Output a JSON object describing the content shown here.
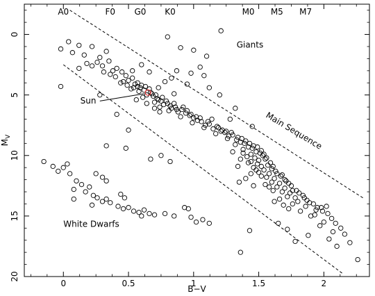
{
  "chart_data": {
    "type": "scatter",
    "title": "",
    "xlabel": "B−V",
    "ylabel": "M",
    "ylabel_sub": "V",
    "xlim": [
      -0.3,
      2.35
    ],
    "ylim": [
      20,
      -2.5
    ],
    "y_inverted": true,
    "grid": false,
    "x_ticks": [
      0,
      0.5,
      1,
      1.5,
      2
    ],
    "x_tick_labels": [
      "0",
      "0.5",
      "1",
      "1.5",
      "2"
    ],
    "y_ticks": [
      0,
      5,
      10,
      15,
      20
    ],
    "y_tick_labels": [
      "0",
      "5",
      "10",
      "15",
      "20"
    ],
    "spectral_types": [
      {
        "label": "A0",
        "x": 0.0
      },
      {
        "label": "F0",
        "x": 0.36
      },
      {
        "label": "G0",
        "x": 0.59
      },
      {
        "label": "K0",
        "x": 0.82
      },
      {
        "label": "M0",
        "x": 1.42
      },
      {
        "label": "M5",
        "x": 1.64
      },
      {
        "label": "M7",
        "x": 1.86
      }
    ],
    "annotations": [
      {
        "text": "Giants",
        "x": 1.33,
        "y": 1.1
      },
      {
        "text": "Main Sequence",
        "x": 1.55,
        "y": 6.8,
        "angle": 31
      },
      {
        "text": "Sun",
        "x": 0.13,
        "y": 5.7
      },
      {
        "text": "White Dwarfs",
        "x": 0.0,
        "y": 15.9
      }
    ],
    "sun": {
      "x": 0.65,
      "y": 4.8
    },
    "sun_pointer": {
      "x1": 0.28,
      "y1": 5.5,
      "x2": 0.62,
      "y2": 4.9
    },
    "dashed_lines": [
      {
        "x1": 0.05,
        "y1": -2.0,
        "x2": 2.3,
        "y2": 13.5
      },
      {
        "x1": 0.0,
        "y1": 2.5,
        "x2": 2.15,
        "y2": 19.8
      }
    ],
    "series": [
      {
        "points": [
          [
            0.04,
            0.6
          ],
          [
            0.12,
            0.9
          ],
          [
            -0.02,
            1.2
          ],
          [
            0.07,
            1.5
          ],
          [
            0.22,
            1.0
          ],
          [
            0.16,
            1.7
          ],
          [
            0.28,
            1.9
          ],
          [
            0.33,
            1.4
          ],
          [
            0.26,
            2.3
          ],
          [
            0.3,
            2.6
          ],
          [
            0.35,
            2.2
          ],
          [
            0.41,
            2.8
          ],
          [
            0.38,
            3.0
          ],
          [
            0.45,
            3.1
          ],
          [
            0.4,
            3.5
          ],
          [
            0.48,
            3.4
          ],
          [
            0.5,
            3.8
          ],
          [
            0.53,
            3.6
          ],
          [
            0.44,
            4.0
          ],
          [
            0.55,
            4.1
          ],
          [
            0.57,
            4.3
          ],
          [
            0.6,
            4.2
          ],
          [
            0.52,
            4.5
          ],
          [
            0.58,
            4.7
          ],
          [
            0.62,
            4.6
          ],
          [
            0.64,
            5.0
          ],
          [
            0.67,
            4.8
          ],
          [
            0.61,
            5.2
          ],
          [
            0.69,
            5.1
          ],
          [
            0.72,
            5.3
          ],
          [
            0.7,
            5.6
          ],
          [
            0.75,
            5.5
          ],
          [
            0.77,
            5.8
          ],
          [
            0.8,
            5.7
          ],
          [
            0.74,
            6.0
          ],
          [
            0.83,
            6.1
          ],
          [
            0.86,
            6.0
          ],
          [
            0.81,
            6.3
          ],
          [
            0.88,
            6.4
          ],
          [
            0.91,
            6.2
          ],
          [
            0.94,
            6.5
          ],
          [
            0.9,
            6.8
          ],
          [
            0.97,
            6.7
          ],
          [
            1.0,
            6.9
          ],
          [
            1.03,
            7.1
          ],
          [
            0.99,
            7.3
          ],
          [
            1.06,
            7.2
          ],
          [
            1.09,
            7.5
          ],
          [
            1.12,
            7.4
          ],
          [
            1.08,
            7.7
          ],
          [
            1.15,
            7.8
          ],
          [
            1.18,
            7.6
          ],
          [
            1.21,
            8.0
          ],
          [
            1.17,
            8.2
          ],
          [
            1.24,
            8.1
          ],
          [
            1.27,
            8.4
          ],
          [
            1.3,
            8.3
          ],
          [
            1.26,
            8.6
          ],
          [
            1.33,
            8.7
          ],
          [
            1.36,
            8.9
          ],
          [
            1.32,
            9.1
          ],
          [
            1.39,
            9.0
          ],
          [
            1.42,
            9.3
          ],
          [
            1.38,
            9.5
          ],
          [
            1.45,
            9.4
          ],
          [
            1.48,
            9.7
          ],
          [
            1.44,
            9.9
          ],
          [
            1.51,
            9.8
          ],
          [
            1.41,
            10.1
          ],
          [
            1.47,
            10.2
          ],
          [
            1.53,
            10.0
          ],
          [
            1.5,
            10.4
          ],
          [
            1.44,
            10.5
          ],
          [
            1.55,
            10.3
          ],
          [
            1.49,
            10.7
          ],
          [
            1.52,
            10.9
          ],
          [
            1.46,
            11.0
          ],
          [
            1.57,
            10.8
          ],
          [
            1.54,
            11.2
          ],
          [
            1.6,
            11.1
          ],
          [
            1.5,
            11.4
          ],
          [
            1.58,
            11.5
          ],
          [
            1.63,
            11.3
          ],
          [
            1.56,
            11.8
          ],
          [
            1.62,
            11.9
          ],
          [
            1.67,
            11.7
          ],
          [
            1.6,
            12.2
          ],
          [
            1.66,
            12.3
          ],
          [
            1.71,
            12.1
          ],
          [
            1.64,
            12.6
          ],
          [
            1.7,
            12.7
          ],
          [
            1.75,
            12.5
          ],
          [
            1.68,
            13.0
          ],
          [
            1.74,
            13.1
          ],
          [
            1.79,
            12.9
          ],
          [
            1.72,
            13.4
          ],
          [
            1.78,
            13.5
          ],
          [
            1.84,
            13.3
          ],
          [
            1.8,
            13.8
          ],
          [
            1.87,
            13.7
          ],
          [
            1.92,
            14.0
          ],
          [
            1.86,
            14.2
          ],
          [
            1.95,
            14.3
          ],
          [
            1.99,
            14.6
          ],
          [
            1.93,
            14.9
          ],
          [
            2.03,
            14.8
          ],
          [
            2.06,
            15.2
          ],
          [
            2.0,
            15.5
          ],
          [
            2.09,
            15.6
          ],
          [
            2.13,
            16.0
          ],
          [
            2.07,
            16.3
          ],
          [
            2.16,
            16.5
          ],
          [
            2.04,
            16.9
          ],
          [
            2.2,
            17.2
          ],
          [
            2.1,
            17.5
          ],
          [
            2.26,
            18.6
          ],
          [
            1.72,
            16.1
          ],
          [
            1.88,
            16.6
          ],
          [
            1.65,
            15.6
          ],
          [
            1.78,
            17.1
          ],
          [
            1.38,
            9.8
          ],
          [
            1.42,
            10.6
          ],
          [
            1.36,
            10.3
          ],
          [
            1.48,
            11.2
          ],
          [
            1.52,
            11.7
          ],
          [
            1.44,
            11.5
          ],
          [
            1.58,
            12.6
          ],
          [
            1.61,
            12.9
          ],
          [
            1.55,
            12.4
          ],
          [
            1.66,
            13.6
          ],
          [
            1.69,
            14.1
          ],
          [
            1.73,
            14.4
          ],
          [
            1.76,
            14.0
          ],
          [
            1.82,
            14.6
          ],
          [
            1.9,
            15.0
          ],
          [
            1.97,
            15.8
          ],
          [
            1.34,
            10.9
          ],
          [
            1.3,
            9.7
          ],
          [
            1.4,
            11.9
          ],
          [
            1.46,
            12.5
          ],
          [
            1.62,
            13.8
          ],
          [
            1.35,
            12.2
          ],
          [
            1.43,
            16.2
          ],
          [
            1.36,
            18.0
          ],
          [
            0.8,
            0.2
          ],
          [
            1.21,
            -0.3
          ],
          [
            0.9,
            1.1
          ],
          [
            1.0,
            1.3
          ],
          [
            1.1,
            1.8
          ],
          [
            1.05,
            2.7
          ],
          [
            0.98,
            3.2
          ],
          [
            1.08,
            3.4
          ],
          [
            0.87,
            3.0
          ],
          [
            0.83,
            3.6
          ],
          [
            0.95,
            4.1
          ],
          [
            1.12,
            4.4
          ],
          [
            1.2,
            5.0
          ],
          [
            1.32,
            6.1
          ],
          [
            1.28,
            7.0
          ],
          [
            1.45,
            7.6
          ],
          [
            0.33,
            9.2
          ],
          [
            0.48,
            9.4
          ],
          [
            0.67,
            10.3
          ],
          [
            0.75,
            10.0
          ],
          [
            0.82,
            10.5
          ],
          [
            0.5,
            7.9
          ],
          [
            0.41,
            6.6
          ],
          [
            0.28,
            5.0
          ],
          [
            -0.02,
            4.3
          ],
          [
            0.22,
            2.6
          ],
          [
            0.53,
            3.0
          ],
          [
            0.66,
            3.1
          ],
          [
            0.73,
            4.4
          ],
          [
            0.85,
            4.9
          ],
          [
            0.78,
            3.9
          ],
          [
            0.6,
            2.5
          ],
          [
            -0.15,
            10.5
          ],
          [
            -0.08,
            10.9
          ],
          [
            -0.04,
            11.3
          ],
          [
            0.0,
            11.0
          ],
          [
            0.05,
            11.5
          ],
          [
            0.03,
            10.7
          ],
          [
            0.1,
            12.1
          ],
          [
            0.14,
            12.4
          ],
          [
            0.08,
            12.8
          ],
          [
            0.17,
            13.0
          ],
          [
            0.2,
            12.6
          ],
          [
            0.23,
            13.3
          ],
          [
            0.26,
            13.5
          ],
          [
            0.3,
            13.8
          ],
          [
            0.33,
            13.6
          ],
          [
            0.36,
            13.9
          ],
          [
            0.42,
            14.2
          ],
          [
            0.46,
            14.4
          ],
          [
            0.5,
            14.3
          ],
          [
            0.54,
            14.6
          ],
          [
            0.58,
            14.7
          ],
          [
            0.62,
            14.5
          ],
          [
            0.66,
            14.8
          ],
          [
            0.7,
            14.9
          ],
          [
            0.78,
            14.8
          ],
          [
            0.85,
            15.0
          ],
          [
            0.93,
            14.3
          ],
          [
            0.96,
            14.4
          ],
          [
            0.98,
            15.1
          ],
          [
            1.02,
            15.5
          ],
          [
            1.07,
            15.3
          ],
          [
            1.12,
            15.6
          ],
          [
            0.3,
            11.8
          ],
          [
            0.33,
            12.1
          ],
          [
            0.44,
            13.2
          ],
          [
            0.47,
            13.5
          ],
          [
            0.25,
            11.5
          ],
          [
            0.6,
            15.0
          ],
          [
            0.08,
            13.6
          ],
          [
            0.22,
            14.1
          ],
          [
            0.57,
            4.0
          ],
          [
            0.59,
            4.4
          ],
          [
            0.63,
            4.3
          ],
          [
            0.66,
            4.5
          ],
          [
            0.68,
            4.9
          ],
          [
            0.71,
            5.0
          ],
          [
            0.73,
            5.4
          ],
          [
            0.76,
            5.2
          ],
          [
            0.79,
            5.5
          ],
          [
            0.82,
            5.9
          ],
          [
            0.85,
            5.7
          ],
          [
            0.87,
            6.2
          ],
          [
            0.92,
            6.0
          ],
          [
            0.95,
            6.3
          ],
          [
            0.98,
            6.6
          ],
          [
            1.02,
            6.8
          ],
          [
            1.05,
            6.9
          ],
          [
            1.11,
            7.2
          ],
          [
            1.14,
            7.0
          ],
          [
            1.19,
            7.7
          ],
          [
            1.22,
            7.9
          ],
          [
            1.25,
            8.0
          ],
          [
            1.29,
            8.1
          ],
          [
            1.34,
            8.5
          ],
          [
            1.37,
            8.6
          ],
          [
            1.4,
            8.8
          ],
          [
            1.43,
            9.0
          ],
          [
            1.46,
            9.2
          ],
          [
            1.49,
            9.3
          ],
          [
            1.52,
            9.6
          ],
          [
            1.54,
            9.9
          ],
          [
            1.56,
            10.2
          ],
          [
            1.59,
            10.6
          ],
          [
            1.61,
            10.9
          ],
          [
            1.64,
            11.5
          ],
          [
            1.68,
            11.6
          ],
          [
            1.7,
            12.0
          ],
          [
            1.73,
            12.3
          ],
          [
            1.76,
            12.9
          ],
          [
            1.81,
            13.1
          ],
          [
            1.85,
            13.5
          ],
          [
            1.89,
            13.9
          ],
          [
            1.94,
            14.5
          ],
          [
            1.98,
            14.3
          ],
          [
            2.02,
            14.2
          ],
          [
            0.46,
            3.9
          ],
          [
            0.49,
            4.2
          ],
          [
            0.54,
            4.4
          ],
          [
            0.36,
            3.3
          ],
          [
            0.31,
            3.1
          ],
          [
            0.18,
            2.4
          ],
          [
            0.12,
            2.8
          ],
          [
            0.56,
            5.4
          ],
          [
            0.64,
            5.7
          ],
          [
            0.7,
            6.1
          ],
          [
            0.74,
            6.4
          ]
        ]
      }
    ]
  }
}
